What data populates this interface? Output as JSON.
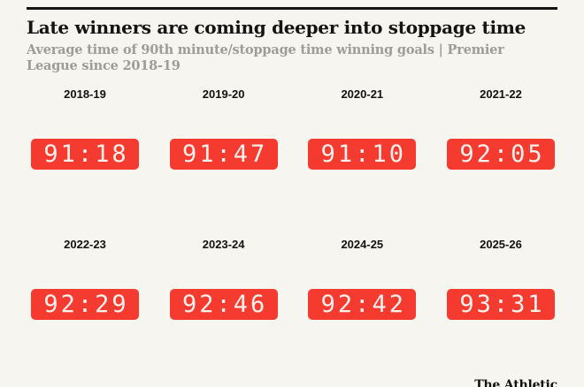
{
  "meta": {
    "background_color": "#f6f5ef",
    "accent_red": "#f53b30",
    "clock_text_color": "#fff1ee",
    "title_color": "#141414",
    "subtitle_color": "#9d9c96",
    "rule_color": "#121212"
  },
  "header": {
    "title": "Late winners are coming deeper into stoppage time",
    "subtitle": "Average time of 90th minute/stoppage time winning goals | Premier League since 2018-19"
  },
  "chart_data": {
    "type": "table",
    "title": "Late winners are coming deeper into stoppage time",
    "subtitle": "Average time of 90th minute/stoppage time winning goals | Premier League since 2018-19",
    "categories": [
      "2018-19",
      "2019-20",
      "2020-21",
      "2021-22",
      "2022-23",
      "2023-24",
      "2024-25",
      "2025-26"
    ],
    "values": [
      "91:18",
      "91:47",
      "91:10",
      "92:05",
      "92:29",
      "92:46",
      "92:42",
      "93:31"
    ],
    "values_decimal_minutes": [
      91.3,
      91.78,
      91.17,
      92.08,
      92.48,
      92.77,
      92.7,
      93.52
    ],
    "layout": {
      "rows": 2,
      "cols": 4,
      "legend": "none",
      "grid": "off"
    },
    "value_style": "digital-clock red badge"
  },
  "footer": {
    "brand": "The Athletic"
  }
}
